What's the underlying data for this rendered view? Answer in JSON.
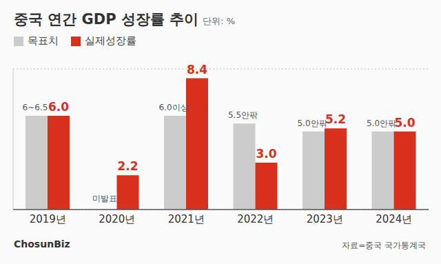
{
  "chart_data": {
    "type": "bar",
    "title": "중국 연간 GDP 성장률 추이",
    "subtitle": "단위: %",
    "categories": [
      "2019년",
      "2020년",
      "2021년",
      "2022년",
      "2023년",
      "2024년"
    ],
    "series": [
      {
        "name": "목표치",
        "color": "#cccccc",
        "values": [
          6,
          null,
          6,
          5.5,
          5,
          5
        ],
        "value_labels": [
          "6~6.5",
          "미발표",
          "6.0이상",
          "5.5안팎",
          "5.0안팎",
          "5.0안팎"
        ]
      },
      {
        "name": "실제성장률",
        "color": "#d9301e",
        "values": [
          6,
          2.2,
          8.4,
          3,
          5.2,
          5
        ],
        "value_labels": [
          "6.0",
          "2.2",
          "8.4",
          "3.0",
          "5.2",
          "5.0"
        ]
      }
    ],
    "ylim": [
      0,
      9
    ],
    "yticks": [
      0,
      2,
      4,
      6,
      8
    ],
    "grid": true,
    "tick_labels": "x",
    "data_labels": true,
    "legend": "top left",
    "source": "자료=중국 국가통계국",
    "logo": "ChosunBiz"
  }
}
